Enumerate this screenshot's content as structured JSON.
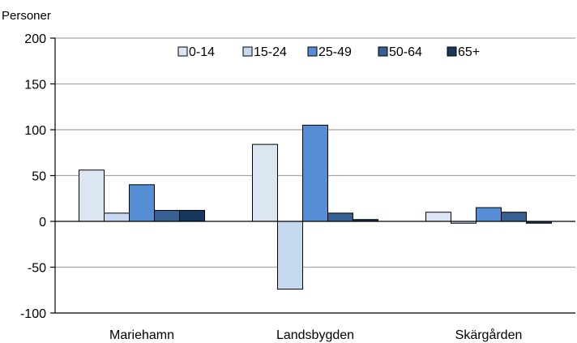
{
  "chart_data": {
    "type": "bar",
    "ylabel": "Personer",
    "ylim": [
      -100,
      200
    ],
    "yticks": [
      -100,
      -50,
      0,
      50,
      100,
      150,
      200
    ],
    "grid": true,
    "legend_position": "top-right",
    "categories": [
      "Mariehamn",
      "Landsbygden",
      "Skärgården"
    ],
    "series": [
      {
        "name": "0-14",
        "color": "#dce6f2",
        "values": [
          56,
          84,
          10
        ]
      },
      {
        "name": "15-24",
        "color": "#c6d9f1",
        "values": [
          9,
          -74,
          -2
        ]
      },
      {
        "name": "25-49",
        "color": "#558ed5",
        "values": [
          40,
          105,
          15
        ]
      },
      {
        "name": "50-64",
        "color": "#376092",
        "values": [
          12,
          9,
          10
        ]
      },
      {
        "name": "65+",
        "color": "#17375e",
        "values": [
          12,
          2,
          -2
        ]
      }
    ]
  }
}
